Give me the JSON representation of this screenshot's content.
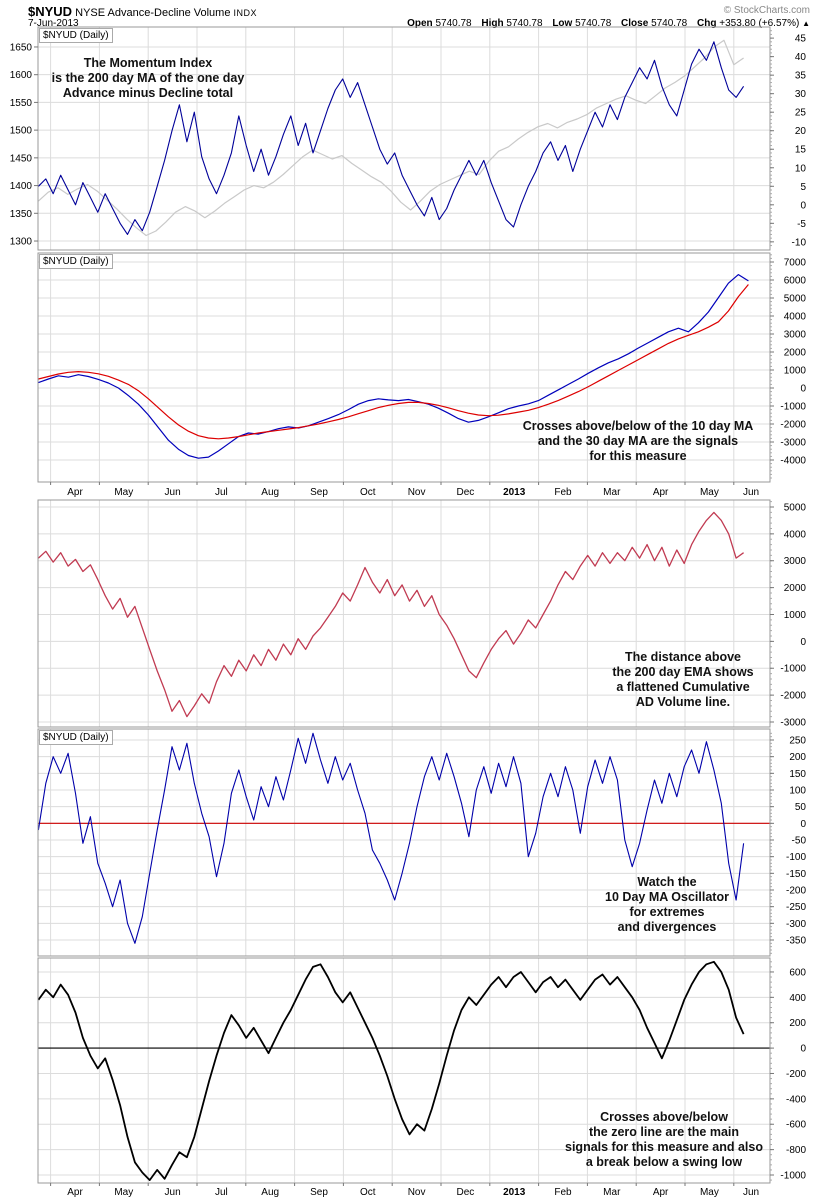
{
  "header": {
    "symbol": "$NYUD",
    "name": "NYSE Advance-Decline Volume",
    "exchange": "INDX",
    "copyright": "© StockCharts.com",
    "date": "7-Jun-2013",
    "quote": {
      "open_label": "Open",
      "open": "5740.78",
      "high_label": "High",
      "high": "5740.78",
      "low_label": "Low",
      "low": "5740.78",
      "close_label": "Close",
      "close": "5740.78",
      "chg_label": "Chg",
      "chg": "+353.80 (+6.57%)",
      "arrow": "▲"
    }
  },
  "months": [
    "Apr",
    "May",
    "Jun",
    "Jul",
    "Aug",
    "Sep",
    "Oct",
    "Nov",
    "Dec",
    "2013",
    "Feb",
    "Mar",
    "Apr",
    "May",
    "Jun"
  ],
  "colors": {
    "grid": "#dcdcdc",
    "border": "#999999",
    "tick": "#777777",
    "minor_tick": "#aaaaaa",
    "navy": "#000099",
    "gray_overlay": "#c9c9c9",
    "blue_ma": "#0000bb",
    "red_ma": "#dd0000",
    "crimson": "#c13b52",
    "black": "#000000",
    "zero_red": "#cc0000"
  },
  "chart_data": [
    {
      "type": "line",
      "label": "$NYUD (Daily)",
      "ylim": [
        -12.2,
        48
      ],
      "right_ticks": [
        45,
        40,
        35,
        30,
        25,
        20,
        15,
        10,
        5,
        0,
        -5,
        -10
      ],
      "left_ticks": [
        1650,
        1600,
        1550,
        1500,
        1450,
        1400,
        1350,
        1300
      ],
      "left_ylim": [
        1283.8,
        1686
      ],
      "annotation": {
        "lines": [
          "The Momentum Index",
          "is the 200 day MA of the one day",
          "Advance minus Decline total"
        ]
      },
      "series": [
        {
          "name": "price-overlay-gray",
          "color": "#c9c9c9",
          "width": 1.2,
          "scale": "left",
          "u0": -0.25,
          "u1": 14.2,
          "values": [
            1372,
            1388,
            1396,
            1384,
            1394,
            1402,
            1390,
            1374,
            1358,
            1340,
            1324,
            1310,
            1318,
            1334,
            1352,
            1362,
            1354,
            1342,
            1354,
            1368,
            1380,
            1392,
            1400,
            1396,
            1406,
            1420,
            1436,
            1452,
            1464,
            1456,
            1448,
            1454,
            1440,
            1428,
            1416,
            1406,
            1390,
            1370,
            1356,
            1372,
            1390,
            1402,
            1410,
            1418,
            1426,
            1420,
            1444,
            1462,
            1470,
            1484,
            1496,
            1506,
            1512,
            1504,
            1514,
            1520,
            1528,
            1540,
            1548,
            1556,
            1562,
            1554,
            1548,
            1562,
            1576,
            1586,
            1598,
            1614,
            1630,
            1650,
            1662,
            1618,
            1630
          ]
        },
        {
          "name": "momentum-index-200d-ma",
          "color": "#000099",
          "width": 1.1,
          "scale": "right",
          "u0": -0.25,
          "u1": 14.2,
          "values": [
            5,
            7,
            3,
            8,
            4,
            0,
            6,
            2,
            -2,
            3,
            -1,
            -5,
            -8,
            -4,
            -7,
            -2,
            5,
            12,
            20,
            27,
            17,
            25,
            13,
            7,
            3,
            8,
            14,
            24,
            16,
            9,
            15,
            8,
            13,
            19,
            24,
            16,
            22,
            14,
            20,
            26,
            31,
            34,
            29,
            33,
            27,
            21,
            15,
            11,
            14,
            8,
            4,
            0,
            -3,
            2,
            -4,
            -1,
            4,
            8,
            12,
            8,
            12,
            6,
            1,
            -4,
            -6,
            0,
            5,
            9,
            14,
            17,
            12,
            16,
            9,
            15,
            20,
            25,
            21,
            27,
            23,
            29,
            33,
            37,
            34,
            39,
            32,
            27,
            24,
            31,
            38,
            42,
            39,
            44,
            37,
            31,
            29,
            32
          ]
        }
      ]
    },
    {
      "type": "line",
      "label": "$NYUD (Daily)",
      "ylim": [
        -5222,
        7500
      ],
      "right_ticks": [
        7000,
        6000,
        5000,
        4000,
        3000,
        2000,
        1000,
        0,
        -1000,
        -2000,
        -3000,
        -4000
      ],
      "annotation": {
        "lines": [
          "Crosses above/below of the 10 day MA",
          "and the 30 day MA are the signals",
          "for this measure"
        ]
      },
      "series": [
        {
          "name": "ad-volume-10-day-ma",
          "color": "#0000bb",
          "width": 1.2,
          "scale": "right",
          "u0": -0.25,
          "u1": 14.3,
          "values": [
            300,
            500,
            680,
            600,
            740,
            640,
            480,
            280,
            0,
            -420,
            -900,
            -1500,
            -2200,
            -2900,
            -3400,
            -3750,
            -3900,
            -3840,
            -3500,
            -3100,
            -2700,
            -2500,
            -2560,
            -2420,
            -2260,
            -2160,
            -2220,
            -2100,
            -1900,
            -1700,
            -1480,
            -1200,
            -900,
            -700,
            -600,
            -660,
            -700,
            -640,
            -760,
            -900,
            -1120,
            -1400,
            -1700,
            -1900,
            -1800,
            -1600,
            -1380,
            -1150,
            -1000,
            -880,
            -700,
            -400,
            -100,
            200,
            500,
            820,
            1120,
            1400,
            1620,
            1900,
            2220,
            2520,
            2820,
            3120,
            3320,
            3120,
            3620,
            4220,
            5020,
            5820,
            6300,
            5950
          ]
        },
        {
          "name": "ad-volume-30-day-ma",
          "color": "#dd0000",
          "width": 1.2,
          "scale": "right",
          "u0": -0.25,
          "u1": 14.3,
          "values": [
            500,
            640,
            780,
            870,
            910,
            870,
            790,
            650,
            440,
            200,
            -150,
            -600,
            -1100,
            -1600,
            -2050,
            -2400,
            -2650,
            -2780,
            -2820,
            -2780,
            -2700,
            -2600,
            -2500,
            -2420,
            -2350,
            -2280,
            -2200,
            -2100,
            -2000,
            -1880,
            -1750,
            -1600,
            -1430,
            -1260,
            -1090,
            -960,
            -860,
            -800,
            -800,
            -860,
            -960,
            -1100,
            -1260,
            -1400,
            -1500,
            -1540,
            -1510,
            -1440,
            -1340,
            -1240,
            -1090,
            -900,
            -690,
            -450,
            -200,
            80,
            380,
            680,
            980,
            1280,
            1580,
            1880,
            2180,
            2480,
            2730,
            2930,
            3120,
            3380,
            3680,
            4280,
            5080,
            5750
          ]
        }
      ]
    },
    {
      "type": "line",
      "label": null,
      "ylim": [
        -3186,
        5260
      ],
      "right_ticks": [
        5000,
        4000,
        3000,
        2000,
        1000,
        0,
        -1000,
        -2000,
        -3000
      ],
      "annotation": {
        "lines": [
          "The distance above",
          "the 200 day EMA shows",
          "a flattened Cumulative",
          "AD Volume line."
        ]
      },
      "series": [
        {
          "name": "cumulative-ad-volume-minus-200ema",
          "color": "#c13b52",
          "width": 1.3,
          "scale": "right",
          "u0": -0.25,
          "u1": 14.2,
          "values": [
            3100,
            3350,
            2950,
            3300,
            2800,
            3050,
            2600,
            2850,
            2300,
            1700,
            1200,
            1600,
            900,
            1300,
            500,
            -300,
            -1100,
            -1800,
            -2600,
            -2200,
            -2800,
            -2400,
            -1950,
            -2300,
            -1500,
            -900,
            -1300,
            -700,
            -1100,
            -500,
            -900,
            -300,
            -700,
            -100,
            -500,
            100,
            -300,
            200,
            500,
            900,
            1300,
            1800,
            1500,
            2100,
            2750,
            2200,
            1800,
            2300,
            1700,
            2100,
            1500,
            1900,
            1300,
            1700,
            1000,
            600,
            100,
            -500,
            -1100,
            -1350,
            -800,
            -300,
            100,
            400,
            -100,
            300,
            800,
            500,
            1000,
            1500,
            2100,
            2600,
            2300,
            2800,
            3200,
            2800,
            3300,
            2900,
            3300,
            3000,
            3500,
            3100,
            3600,
            3000,
            3500,
            2800,
            3400,
            2900,
            3600,
            4100,
            4500,
            4800,
            4500,
            4000,
            3100,
            3300
          ]
        }
      ]
    },
    {
      "type": "line",
      "label": "$NYUD (Daily)",
      "ylim": [
        -398,
        283
      ],
      "right_ticks": [
        250,
        200,
        150,
        100,
        50,
        0,
        -50,
        -100,
        -150,
        -200,
        -250,
        -300,
        -350
      ],
      "zero_line": {
        "value": 0,
        "color": "#cc0000"
      },
      "annotation": {
        "lines": [
          "Watch the",
          "10 Day MA Oscillator",
          "for extremes",
          "and divergences"
        ]
      },
      "series": [
        {
          "name": "10-day-ma-oscillator",
          "color": "#0000aa",
          "width": 1.1,
          "scale": "right",
          "u0": -0.25,
          "u1": 14.2,
          "values": [
            -20,
            120,
            200,
            150,
            210,
            90,
            -60,
            20,
            -120,
            -180,
            -250,
            -170,
            -300,
            -360,
            -280,
            -150,
            -20,
            100,
            230,
            160,
            240,
            120,
            30,
            -40,
            -160,
            -60,
            90,
            160,
            80,
            10,
            110,
            50,
            140,
            70,
            160,
            255,
            180,
            270,
            190,
            120,
            200,
            130,
            180,
            100,
            30,
            -80,
            -120,
            -170,
            -230,
            -150,
            -60,
            50,
            140,
            200,
            130,
            210,
            140,
            60,
            -40,
            100,
            170,
            90,
            180,
            110,
            200,
            120,
            -100,
            -30,
            80,
            150,
            80,
            170,
            100,
            -30,
            110,
            190,
            120,
            200,
            130,
            -50,
            -130,
            -60,
            40,
            130,
            60,
            150,
            80,
            170,
            220,
            150,
            245,
            160,
            60,
            -120,
            -230,
            -60
          ]
        }
      ]
    },
    {
      "type": "line",
      "label": null,
      "ylim": [
        -1063,
        710
      ],
      "right_ticks": [
        600,
        400,
        200,
        0,
        -200,
        -400,
        -600,
        -800,
        -1000
      ],
      "zero_line": {
        "value": 0,
        "color": "#000000"
      },
      "annotation": {
        "lines": [
          "Crosses above/below",
          "the zero line are the main",
          "signals for this measure and also",
          "a break below a swing low"
        ]
      },
      "series": [
        {
          "name": "momentum-zero-cross-line",
          "color": "#000000",
          "width": 1.8,
          "scale": "right",
          "u0": -0.25,
          "u1": 14.2,
          "values": [
            380,
            460,
            400,
            500,
            420,
            280,
            80,
            -60,
            -160,
            -80,
            -250,
            -450,
            -700,
            -900,
            -980,
            -1040,
            -960,
            -1030,
            -920,
            -820,
            -860,
            -700,
            -480,
            -260,
            -60,
            120,
            260,
            180,
            80,
            160,
            60,
            -40,
            80,
            200,
            300,
            420,
            540,
            640,
            660,
            560,
            440,
            360,
            440,
            320,
            200,
            80,
            -60,
            -220,
            -400,
            -560,
            -680,
            -600,
            -650,
            -480,
            -280,
            -60,
            140,
            300,
            400,
            340,
            420,
            500,
            560,
            480,
            560,
            600,
            520,
            440,
            520,
            560,
            480,
            540,
            460,
            380,
            460,
            540,
            580,
            500,
            560,
            480,
            400,
            300,
            160,
            40,
            -80,
            60,
            220,
            380,
            500,
            600,
            660,
            680,
            600,
            460,
            240,
            110
          ]
        }
      ]
    }
  ]
}
